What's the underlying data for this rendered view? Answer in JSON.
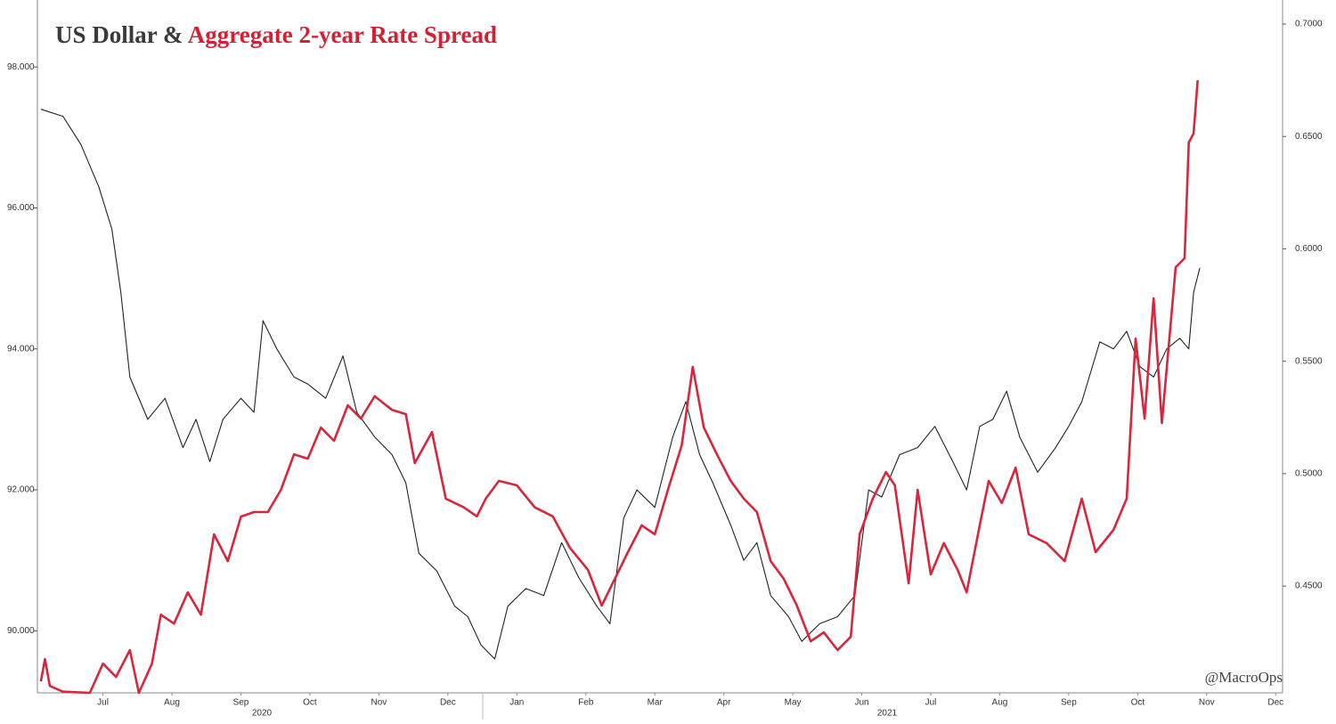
{
  "chart_data": {
    "type": "line",
    "title": "US Dollar &",
    "title_highlight": "Aggregate 2-year Rate Spread",
    "annotation": "@MacroOps",
    "year_labels": [
      "2020",
      "2021"
    ],
    "xlim": [
      0.55,
      18.6
    ],
    "xticks": [
      {
        "value": 1.5,
        "label": "Jul"
      },
      {
        "value": 2.5,
        "label": "Aug"
      },
      {
        "value": 3.5,
        "label": "Sep"
      },
      {
        "value": 4.5,
        "label": "Oct"
      },
      {
        "value": 5.5,
        "label": "Nov"
      },
      {
        "value": 6.5,
        "label": "Dec"
      },
      {
        "value": 7.5,
        "label": "Jan"
      },
      {
        "value": 8.5,
        "label": "Feb"
      },
      {
        "value": 9.5,
        "label": "Mar"
      },
      {
        "value": 10.5,
        "label": "Apr"
      },
      {
        "value": 11.5,
        "label": "May"
      },
      {
        "value": 12.5,
        "label": "Jun"
      },
      {
        "value": 13.5,
        "label": "Jul"
      },
      {
        "value": 14.5,
        "label": "Aug"
      },
      {
        "value": 15.5,
        "label": "Sep"
      },
      {
        "value": 16.5,
        "label": "Oct"
      },
      {
        "value": 17.5,
        "label": "Nov"
      },
      {
        "value": 18.5,
        "label": "Dec"
      }
    ],
    "ylim": [
      89.12,
      98.95
    ],
    "yticks": [
      {
        "value": 90,
        "label": "90.000"
      },
      {
        "value": 92,
        "label": "92.000"
      },
      {
        "value": 94,
        "label": "94.000"
      },
      {
        "value": 96,
        "label": "96.000"
      },
      {
        "value": 98,
        "label": "98.000"
      }
    ],
    "y2lim": [
      0.4025,
      0.7107
    ],
    "y2ticks": [
      {
        "value": 0.45,
        "label": "0.4500"
      },
      {
        "value": 0.5,
        "label": "0.5000"
      },
      {
        "value": 0.55,
        "label": "0.5500"
      },
      {
        "value": 0.6,
        "label": "0.6000"
      },
      {
        "value": 0.65,
        "label": "0.6500"
      },
      {
        "value": 0.7,
        "label": "0.7000"
      }
    ],
    "series": [
      {
        "name": "US Dollar",
        "color": "#222222",
        "axis": "y",
        "x": [
          0.6,
          0.92,
          1.18,
          1.44,
          1.63,
          1.76,
          1.89,
          2.15,
          2.4,
          2.66,
          2.85,
          3.05,
          3.24,
          3.5,
          3.69,
          3.82,
          4.02,
          4.27,
          4.47,
          4.73,
          4.98,
          5.18,
          5.44,
          5.69,
          5.89,
          6.08,
          6.34,
          6.6,
          6.79,
          6.98,
          7.18,
          7.37,
          7.63,
          7.89,
          8.15,
          8.4,
          8.66,
          8.85,
          9.05,
          9.24,
          9.5,
          9.76,
          9.95,
          10.15,
          10.34,
          10.6,
          10.79,
          10.98,
          11.18,
          11.44,
          11.63,
          11.89,
          12.15,
          12.4,
          12.6,
          12.79,
          13.05,
          13.31,
          13.56,
          13.82,
          14.02,
          14.21,
          14.4,
          14.6,
          14.79,
          15.05,
          15.31,
          15.5,
          15.69,
          15.95,
          16.15,
          16.34,
          16.53,
          16.73,
          16.92,
          17.11,
          17.24,
          17.31,
          17.4
        ],
        "values": [
          97.4,
          97.3,
          96.9,
          96.3,
          95.7,
          94.8,
          93.6,
          93.0,
          93.3,
          92.6,
          93.0,
          92.4,
          93.0,
          93.3,
          93.1,
          94.4,
          94.0,
          93.6,
          93.5,
          93.3,
          93.9,
          93.1,
          92.75,
          92.5,
          92.1,
          91.1,
          90.85,
          90.35,
          90.2,
          89.8,
          89.6,
          90.35,
          90.6,
          90.5,
          91.25,
          90.75,
          90.35,
          90.1,
          91.6,
          92.0,
          91.75,
          92.75,
          93.25,
          92.5,
          92.1,
          91.5,
          91.0,
          91.25,
          90.5,
          90.2,
          89.85,
          90.1,
          90.2,
          90.5,
          92.0,
          91.9,
          92.5,
          92.6,
          92.9,
          92.4,
          92.0,
          92.9,
          93.0,
          93.4,
          92.75,
          92.25,
          92.6,
          92.9,
          93.25,
          94.1,
          94.0,
          94.25,
          93.75,
          93.6,
          94.0,
          94.15,
          94.0,
          94.8,
          95.15
        ]
      },
      {
        "name": "Aggregate 2-year Rate Spread",
        "color": "#d7263d",
        "axis": "y2",
        "x": [
          0.6,
          0.66,
          0.73,
          0.92,
          1.31,
          1.5,
          1.69,
          1.89,
          2.02,
          2.21,
          2.34,
          2.53,
          2.73,
          2.92,
          3.11,
          3.31,
          3.5,
          3.69,
          3.89,
          4.08,
          4.27,
          4.47,
          4.66,
          4.85,
          5.05,
          5.24,
          5.44,
          5.69,
          5.89,
          6.02,
          6.27,
          6.47,
          6.73,
          6.92,
          7.05,
          7.24,
          7.5,
          7.76,
          8.02,
          8.27,
          8.53,
          8.73,
          8.92,
          9.11,
          9.31,
          9.5,
          9.69,
          9.89,
          10.05,
          10.21,
          10.4,
          10.6,
          10.79,
          10.98,
          11.18,
          11.37,
          11.56,
          11.76,
          11.95,
          12.15,
          12.34,
          12.47,
          12.66,
          12.85,
          12.98,
          13.18,
          13.31,
          13.5,
          13.69,
          13.89,
          14.02,
          14.21,
          14.34,
          14.53,
          14.73,
          14.92,
          15.18,
          15.44,
          15.69,
          15.89,
          16.15,
          16.34,
          16.47,
          16.6,
          16.73,
          16.85,
          17.05,
          17.18,
          17.24,
          17.31,
          17.37
        ],
        "values": [
          0.4076,
          0.4175,
          0.4056,
          0.403,
          0.4025,
          0.4155,
          0.4096,
          0.4215,
          0.4025,
          0.4155,
          0.4373,
          0.4333,
          0.4472,
          0.4373,
          0.473,
          0.4611,
          0.4809,
          0.4829,
          0.4829,
          0.4928,
          0.5086,
          0.5067,
          0.5205,
          0.5146,
          0.5304,
          0.5245,
          0.5344,
          0.5284,
          0.5265,
          0.5047,
          0.5185,
          0.4889,
          0.485,
          0.481,
          0.4889,
          0.4968,
          0.4948,
          0.485,
          0.481,
          0.467,
          0.4572,
          0.4413,
          0.4532,
          0.4651,
          0.477,
          0.473,
          0.4928,
          0.5126,
          0.5475,
          0.5205,
          0.5086,
          0.4968,
          0.4889,
          0.4829,
          0.4611,
          0.4532,
          0.4413,
          0.4254,
          0.4294,
          0.4215,
          0.4274,
          0.473,
          0.4889,
          0.5007,
          0.4948,
          0.4512,
          0.4928,
          0.4552,
          0.4691,
          0.4572,
          0.4472,
          0.477,
          0.4968,
          0.4869,
          0.5027,
          0.473,
          0.4691,
          0.4611,
          0.4889,
          0.4651,
          0.475,
          0.4889,
          0.5601,
          0.5245,
          0.578,
          0.5225,
          0.5918,
          0.5958,
          0.6473,
          0.6513,
          0.675
        ]
      }
    ]
  }
}
